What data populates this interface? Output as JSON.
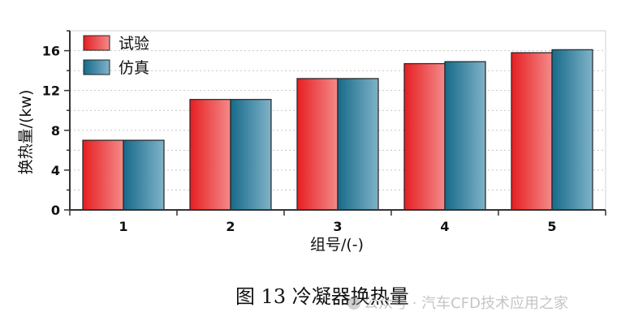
{
  "chart_data": {
    "type": "bar",
    "categories": [
      "1",
      "2",
      "3",
      "4",
      "5"
    ],
    "series": [
      {
        "name": "试验",
        "values": [
          7.0,
          11.1,
          13.2,
          14.7,
          15.8
        ],
        "color": "#e8272a"
      },
      {
        "name": "仿真",
        "values": [
          7.0,
          11.1,
          13.2,
          14.9,
          16.1
        ],
        "color": "#1c6f8e"
      }
    ],
    "xlabel": "组号/(-)",
    "ylabel": "换热量/(kw)",
    "ylim": [
      0,
      18
    ],
    "yticks": [
      0,
      4,
      8,
      12,
      16
    ],
    "grid": true,
    "legend": "top-left"
  },
  "caption": "图 13  冷凝器换热量",
  "watermark": "公众号 · 汽车CFD技术应用之家"
}
